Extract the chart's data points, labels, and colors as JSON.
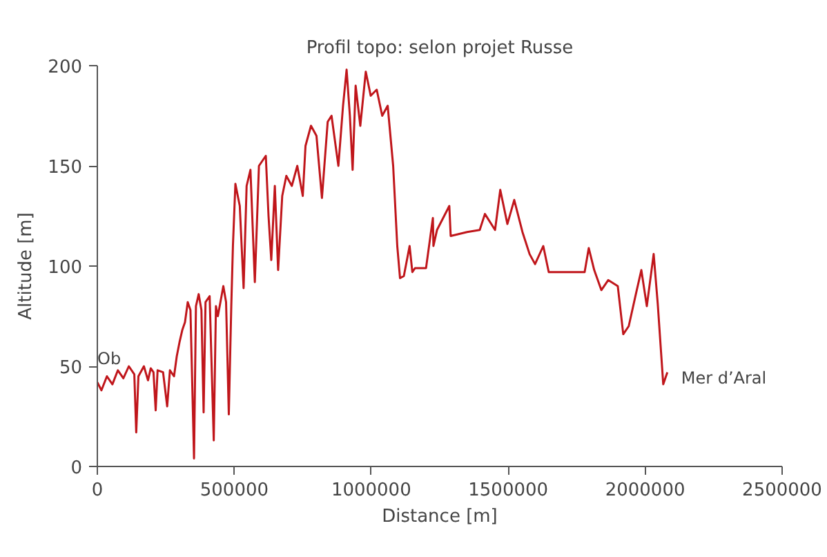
{
  "chart_data": {
    "type": "line",
    "title": "Profil topo: selon projet Russe",
    "xlabel": "Distance [m]",
    "ylabel": "Altitude [m]",
    "xlim": [
      0,
      2500000
    ],
    "ylim": [
      0,
      200
    ],
    "xticks": [
      0,
      500000,
      1000000,
      1500000,
      2000000,
      2500000
    ],
    "yticks": [
      0,
      50,
      100,
      150,
      200
    ],
    "grid": false,
    "series": [
      {
        "color": "#c0161b",
        "x": [
          0,
          15000,
          35000,
          55000,
          75000,
          95000,
          115000,
          135000,
          142000,
          150000,
          170000,
          185000,
          195000,
          205000,
          213000,
          220000,
          240000,
          255000,
          265000,
          280000,
          290000,
          300000,
          310000,
          320000,
          330000,
          340000,
          353000,
          360000,
          370000,
          380000,
          388000,
          395000,
          410000,
          425000,
          433000,
          440000,
          460000,
          470000,
          480000,
          489000,
          495000,
          504000,
          520000,
          534000,
          545000,
          559000,
          567000,
          575000,
          590000,
          615000,
          625000,
          635000,
          648000,
          660000,
          675000,
          690000,
          710000,
          730000,
          750000,
          760000,
          780000,
          800000,
          820000,
          841000,
          855000,
          880000,
          897000,
          910000,
          922000,
          932000,
          943000,
          960000,
          980000,
          998000,
          1020000,
          1040000,
          1060000,
          1080000,
          1095000,
          1105000,
          1119000,
          1140000,
          1150000,
          1160000,
          1200000,
          1225000,
          1227000,
          1240000,
          1285000,
          1290000,
          1350000,
          1396000,
          1415000,
          1452000,
          1471000,
          1497000,
          1522000,
          1552000,
          1578000,
          1598000,
          1628000,
          1648000,
          1779000,
          1794000,
          1814000,
          1840000,
          1865000,
          1900000,
          1920000,
          1940000,
          1966000,
          1986000,
          2006000,
          2031000,
          2046000,
          2066000,
          2081000
        ],
        "values": [
          42,
          38,
          45,
          41,
          48,
          44,
          50,
          46,
          17,
          45,
          50,
          43,
          49,
          47,
          28,
          48,
          47,
          30,
          48,
          45,
          55,
          62,
          68,
          72,
          82,
          78,
          4,
          80,
          86,
          78,
          27,
          82,
          85,
          13,
          80,
          75,
          90,
          82,
          26,
          80,
          110,
          141,
          130,
          89,
          140,
          148,
          120,
          92,
          150,
          155,
          125,
          103,
          140,
          98,
          135,
          145,
          140,
          150,
          135,
          160,
          170,
          165,
          134,
          172,
          175,
          150,
          180,
          198,
          175,
          148,
          190,
          170,
          197,
          185,
          188,
          175,
          180,
          150,
          110,
          94,
          95,
          110,
          97,
          99,
          99,
          124,
          110,
          118,
          130,
          115,
          117,
          118,
          126,
          118,
          138,
          121,
          133,
          117,
          106,
          101,
          110,
          97,
          97,
          109,
          98,
          88,
          93,
          90,
          66,
          70,
          86,
          98,
          80,
          106,
          81,
          41,
          47
        ]
      }
    ],
    "annotations": [
      {
        "text": "Ob",
        "x": 0,
        "y": 42
      },
      {
        "text": "Mer d’Aral",
        "x": 2081000,
        "y": 47
      }
    ]
  }
}
